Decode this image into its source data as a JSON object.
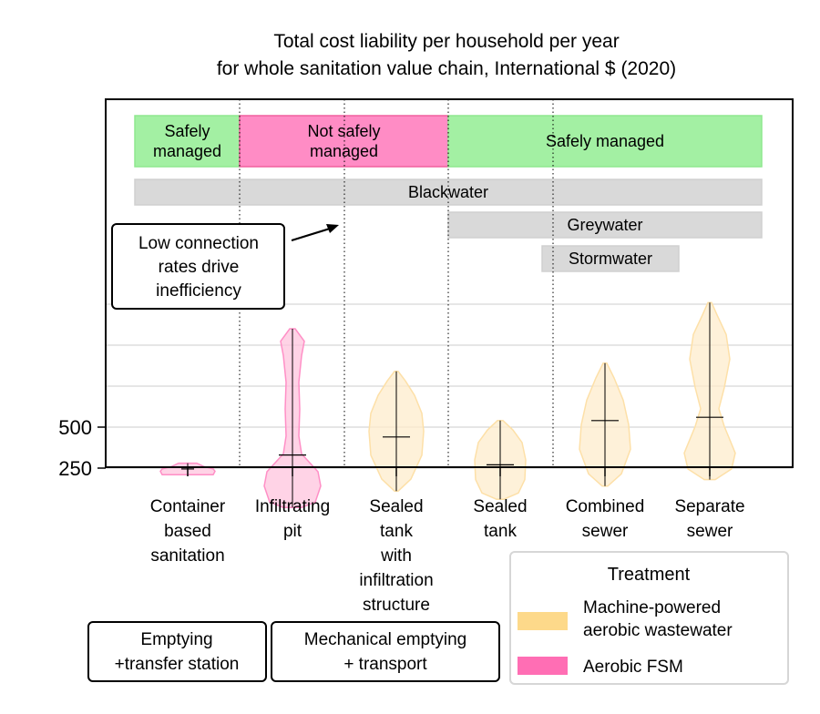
{
  "chart_data": {
    "type": "violin",
    "title": "Total cost liability per household per year\nfor whole sanitation value chain, International $ (2020)",
    "xlabel": "",
    "ylabel": "",
    "y_ticks": [
      250,
      500
    ],
    "ylim": [
      0,
      1150
    ],
    "grid": "horizontal",
    "categories": [
      "Container\nbased\nsanitation",
      "Infiltrating\npit",
      "Sealed\ntank\nwith\ninfiltration\nstructure",
      "Sealed\ntank",
      "Combined\nsewer",
      "Separate\nsewer"
    ],
    "series": [
      {
        "name": "Machine-powered\naerobic wastewater",
        "color": "#fdd98a",
        "violins": [
          {
            "category": "Sealed\ntank\nwith\ninfiltration\nstructure",
            "min": 110,
            "max": 840,
            "median": 440
          },
          {
            "category": "Sealed\ntank",
            "min": 60,
            "max": 540,
            "median": 270
          },
          {
            "category": "Combined\nsewer",
            "min": 140,
            "max": 890,
            "median": 540
          },
          {
            "category": "Separate\nsewer",
            "min": 180,
            "max": 1260,
            "median": 560
          }
        ]
      },
      {
        "name": "Aerobic FSM",
        "color": "#ff6eb4",
        "violins": [
          {
            "category": "Container\nbased\nsanitation",
            "min": 210,
            "max": 280,
            "median": 245
          },
          {
            "category": "Infiltrating\npit",
            "min": 10,
            "max": 1100,
            "median": 330
          }
        ]
      }
    ],
    "bands": [
      {
        "label": "Safely\nmanaged",
        "color": "#a3f0a3",
        "from_group": 0,
        "to_group": 0
      },
      {
        "label": "Not safely\nmanaged",
        "color": "#ff8cc5",
        "from_group": 1,
        "to_group": 2
      },
      {
        "label": "Safely managed",
        "color": "#a3f0a3",
        "from_group": 3,
        "to_group": 5
      },
      {
        "label": "Blackwater",
        "color": "#d9d9d9",
        "from_group": 0,
        "to_group": 5
      },
      {
        "label": "Greywater",
        "color": "#d9d9d9",
        "from_group": 3,
        "to_group": 5
      },
      {
        "label": "Stormwater",
        "color": "#d9d9d9",
        "from_group": 4,
        "to_group": 4
      }
    ],
    "annotation": "Low connection\nrates drive\ninefficiency",
    "bottom_boxes": [
      "Emptying\n+transfer station",
      "Mechanical emptying\n+ transport"
    ],
    "legend": {
      "title": "Treatment",
      "position": "lower-right",
      "entries": [
        {
          "label": "Machine-powered\naerobic wastewater",
          "color": "#fdd98a"
        },
        {
          "label": "Aerobic FSM",
          "color": "#ff6eb4"
        }
      ]
    }
  }
}
